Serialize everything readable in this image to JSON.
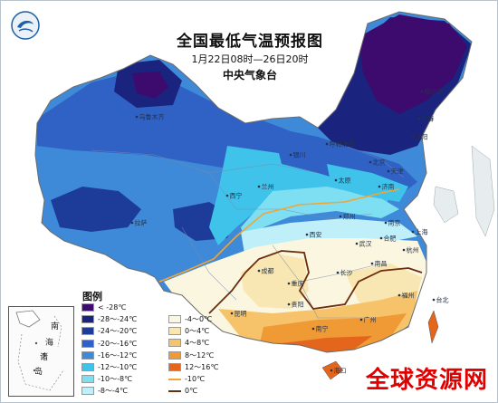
{
  "header": {
    "title": "全国最低气温预报图",
    "period": "1月22日08时—26日20时",
    "issuer": "中央气象台"
  },
  "legend": {
    "title": "图例",
    "items": [
      {
        "label": "< -28℃",
        "color": "#3d0a6e",
        "kind": "fill"
      },
      {
        "label": "-28～-24℃",
        "color": "#1a237e",
        "kind": "fill"
      },
      {
        "label": "-24～-20℃",
        "color": "#1d3c9a",
        "kind": "fill"
      },
      {
        "label": "-20～-16℃",
        "color": "#2f62c4",
        "kind": "fill"
      },
      {
        "label": "-16～-12℃",
        "color": "#3e8ad8",
        "kind": "fill"
      },
      {
        "label": "-12～-10℃",
        "color": "#3fc3ea",
        "kind": "fill"
      },
      {
        "label": "-10～-8℃",
        "color": "#7edff3",
        "kind": "fill"
      },
      {
        "label": "-8～-4℃",
        "color": "#bfeff8",
        "kind": "fill"
      },
      {
        "label": "-4～0℃",
        "color": "#fbf6df",
        "kind": "fill"
      },
      {
        "label": "0～4℃",
        "color": "#f8e7b2",
        "kind": "fill"
      },
      {
        "label": "4～8℃",
        "color": "#f6c36a",
        "kind": "fill"
      },
      {
        "label": "8～12℃",
        "color": "#ef9a34",
        "kind": "fill"
      },
      {
        "label": "12～16℃",
        "color": "#e4661c",
        "kind": "fill"
      },
      {
        "label": "-10℃",
        "color": "#f2a533",
        "kind": "line"
      },
      {
        "label": "0℃",
        "color": "#6b2c10",
        "kind": "line"
      }
    ]
  },
  "inset": {
    "labels": [
      "南",
      "海",
      "诸",
      "岛"
    ]
  },
  "cities": [
    "成都",
    "重庆",
    "长沙",
    "南昌",
    "西安",
    "郑州",
    "武汉",
    "南京",
    "上海",
    "北京",
    "天津",
    "福州",
    "广州",
    "南宁",
    "海口",
    "台北",
    "沈阳",
    "长春",
    "哈尔滨",
    "太原",
    "济南",
    "合肥",
    "杭州",
    "贵阳",
    "昆明",
    "拉萨",
    "西宁",
    "兰州",
    "银川",
    "呼和浩特",
    "乌鲁木齐"
  ],
  "watermark": "全球资源网"
}
